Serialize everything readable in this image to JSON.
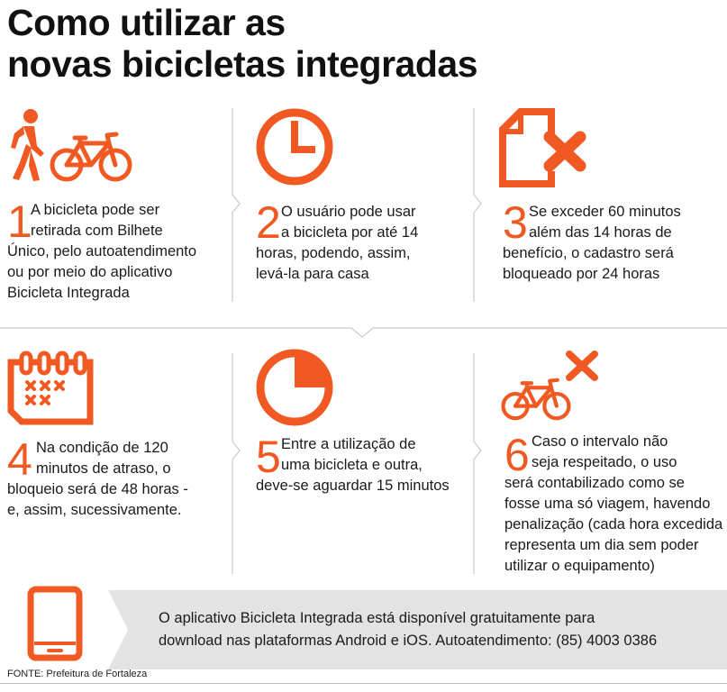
{
  "title": {
    "line1": "Como utilizar as",
    "line2": "novas bicicletas integradas"
  },
  "accent_color": "#f05a22",
  "steps": [
    {
      "number": "1",
      "icons": [
        "walking-person-icon",
        "bicycle-icon"
      ],
      "lines": [
        "A bicicleta pode ser",
        "retirada com Bilhete",
        "Único, pelo autoatendimento",
        "ou por meio do aplicativo",
        "Bicicleta Integrada"
      ]
    },
    {
      "number": "2",
      "icons": [
        "clock-icon"
      ],
      "lines": [
        "O usuário pode usar",
        "a bicicleta por até 14",
        "horas, podendo, assim,",
        "levá-la para casa"
      ]
    },
    {
      "number": "3",
      "icons": [
        "blocked-document-icon"
      ],
      "lines": [
        "Se exceder 60 minutos",
        "além das 14 horas de",
        "benefício, o cadastro será",
        "bloqueado por 24 horas"
      ]
    },
    {
      "number": "4",
      "icons": [
        "calendar-icon"
      ],
      "lines": [
        "Na condição de 120",
        "minutos de atraso, o",
        "bloqueio será de 48 horas -",
        "e, assim, sucessivamente."
      ]
    },
    {
      "number": "5",
      "icons": [
        "quarter-clock-icon"
      ],
      "lines": [
        "Entre a utilização de",
        "uma bicicleta e outra,",
        "deve-se aguardar 15 minutos"
      ]
    },
    {
      "number": "6",
      "icons": [
        "bicycle-icon",
        "cross-icon"
      ],
      "lines": [
        "Caso o intervalo não",
        "seja respeitado, o uso",
        "será contabilizado como se",
        "fosse uma só viagem, havendo",
        "penalização (cada hora excedida",
        "representa um dia sem poder",
        "utilizar o equipamento)"
      ]
    }
  ],
  "banner": {
    "icon": "smartphone-icon",
    "lines": [
      "O aplicativo Bicicleta Integrada está disponível gratuitamente para",
      "download nas plataformas Android e iOS. Autoatendimento: (85) 4003 0386"
    ]
  },
  "source": "FONTE: Prefeitura de Fortaleza"
}
